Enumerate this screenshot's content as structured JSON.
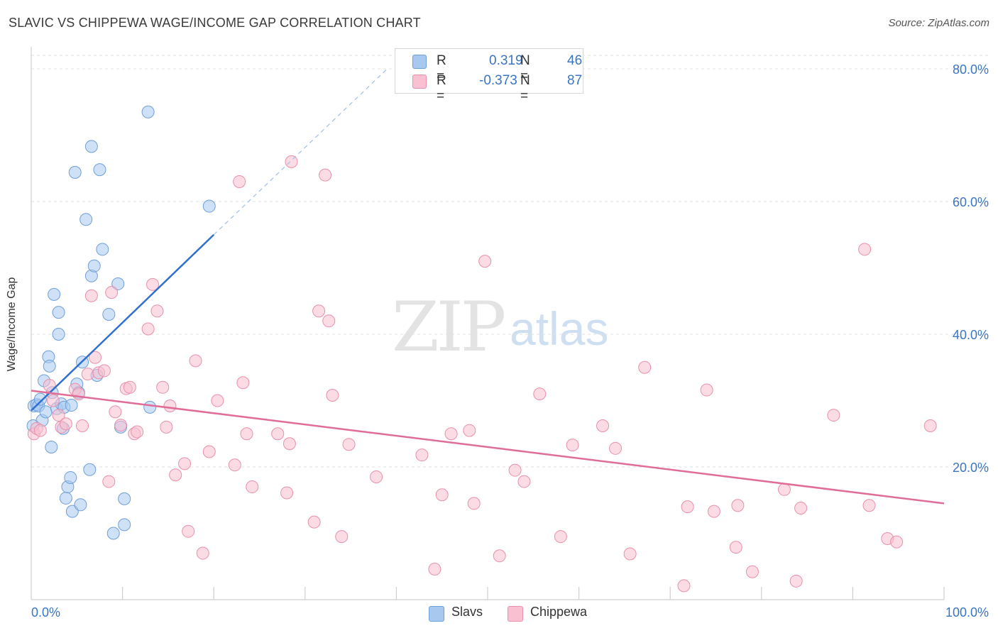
{
  "title": "SLAVIC VS CHIPPEWA WAGE/INCOME GAP CORRELATION CHART",
  "source": "Source: ZipAtlas.com",
  "watermark": {
    "zip": "ZIP",
    "atlas": "atlas"
  },
  "legend": {
    "rows": [
      {
        "r_label": "R =",
        "r_value": "0.319",
        "n_label": "N =",
        "n_value": "46",
        "color": "#a8c8f0",
        "border": "#6f9fd8"
      },
      {
        "r_label": "R =",
        "r_value": "-0.373",
        "n_label": "N =",
        "n_value": "87",
        "color": "#f8c0d0",
        "border": "#e890ab"
      }
    ]
  },
  "bottom_legend": [
    {
      "label": "Slavs",
      "color": "#a8c8f0",
      "border": "#6f9fd8"
    },
    {
      "label": "Chippewa",
      "color": "#f8c0d0",
      "border": "#e890ab"
    }
  ],
  "chart_data": {
    "type": "scatter",
    "title": "SLAVIC VS CHIPPEWA WAGE/INCOME GAP CORRELATION CHART",
    "xlabel": "",
    "ylabel": "Wage/Income Gap",
    "xlim": [
      0,
      100
    ],
    "ylim": [
      0,
      80
    ],
    "x_tick_labels": [
      "0.0%",
      "100.0%"
    ],
    "y_ticks": [
      20,
      40,
      60,
      80
    ],
    "y_tick_labels": [
      "20.0%",
      "40.0%",
      "60.0%",
      "80.0%"
    ],
    "grid": true,
    "series": [
      {
        "name": "Slavs",
        "color": "#6f9fd8",
        "fill": "#a8c8f0",
        "line_color": "#2f6fcf",
        "trend": {
          "x0": 0,
          "y0": 28.5,
          "x1": 20,
          "y1": 55,
          "dash_to_x": 39,
          "dash_to_y": 80
        },
        "points": [
          [
            0.3,
            29.2
          ],
          [
            0.6,
            29.4
          ],
          [
            0.8,
            29.2
          ],
          [
            1.0,
            30.2
          ],
          [
            1.2,
            27.0
          ],
          [
            1.4,
            33.0
          ],
          [
            1.6,
            28.3
          ],
          [
            1.9,
            36.6
          ],
          [
            2.0,
            35.2
          ],
          [
            2.2,
            23.0
          ],
          [
            2.3,
            31.2
          ],
          [
            2.5,
            46.0
          ],
          [
            2.8,
            28.8
          ],
          [
            3.0,
            40.0
          ],
          [
            3.0,
            43.3
          ],
          [
            3.3,
            29.5
          ],
          [
            3.5,
            25.8
          ],
          [
            3.6,
            29.0
          ],
          [
            3.8,
            15.3
          ],
          [
            4.0,
            17.0
          ],
          [
            4.3,
            18.4
          ],
          [
            4.4,
            29.3
          ],
          [
            4.5,
            13.3
          ],
          [
            4.8,
            64.4
          ],
          [
            5.0,
            32.5
          ],
          [
            5.2,
            31.2
          ],
          [
            5.4,
            14.3
          ],
          [
            5.6,
            35.8
          ],
          [
            6.0,
            57.3
          ],
          [
            6.4,
            19.6
          ],
          [
            6.6,
            48.8
          ],
          [
            6.6,
            68.3
          ],
          [
            6.9,
            50.3
          ],
          [
            7.2,
            33.8
          ],
          [
            7.5,
            64.8
          ],
          [
            7.8,
            52.8
          ],
          [
            8.5,
            43.0
          ],
          [
            9.0,
            10.0
          ],
          [
            9.5,
            47.6
          ],
          [
            9.8,
            26.0
          ],
          [
            10.2,
            15.2
          ],
          [
            10.2,
            11.3
          ],
          [
            12.8,
            73.5
          ],
          [
            13.0,
            29.0
          ],
          [
            19.5,
            59.3
          ],
          [
            0.2,
            26.2
          ]
        ]
      },
      {
        "name": "Chippewa",
        "color": "#e890ab",
        "fill": "#f8c0d0",
        "line_color": "#e06d98",
        "trend": {
          "x0": 0,
          "y0": 31.5,
          "x1": 100,
          "y1": 14.5
        },
        "points": [
          [
            0.3,
            25.0
          ],
          [
            0.6,
            25.8
          ],
          [
            1.0,
            25.5
          ],
          [
            2.0,
            32.3
          ],
          [
            2.4,
            30.0
          ],
          [
            3.0,
            27.8
          ],
          [
            3.3,
            26.0
          ],
          [
            3.8,
            26.5
          ],
          [
            4.8,
            31.7
          ],
          [
            5.2,
            31.0
          ],
          [
            5.6,
            26.2
          ],
          [
            6.2,
            34.0
          ],
          [
            6.6,
            45.8
          ],
          [
            7.0,
            36.5
          ],
          [
            7.4,
            34.2
          ],
          [
            8.0,
            34.5
          ],
          [
            8.5,
            17.8
          ],
          [
            8.8,
            46.3
          ],
          [
            9.2,
            28.3
          ],
          [
            9.8,
            26.3
          ],
          [
            10.4,
            31.8
          ],
          [
            10.8,
            32.0
          ],
          [
            11.3,
            25.0
          ],
          [
            11.6,
            25.3
          ],
          [
            12.8,
            40.8
          ],
          [
            13.3,
            47.5
          ],
          [
            13.8,
            43.5
          ],
          [
            14.4,
            32.0
          ],
          [
            14.8,
            26.0
          ],
          [
            15.2,
            29.2
          ],
          [
            15.8,
            18.8
          ],
          [
            16.8,
            20.5
          ],
          [
            17.2,
            10.3
          ],
          [
            18.0,
            36.0
          ],
          [
            18.8,
            7.0
          ],
          [
            19.5,
            22.3
          ],
          [
            20.4,
            30.0
          ],
          [
            22.3,
            20.3
          ],
          [
            22.8,
            63.0
          ],
          [
            23.2,
            32.7
          ],
          [
            23.6,
            25.0
          ],
          [
            24.2,
            17.0
          ],
          [
            27.0,
            25.0
          ],
          [
            28.0,
            16.1
          ],
          [
            28.3,
            23.5
          ],
          [
            28.5,
            66.0
          ],
          [
            31.0,
            11.7
          ],
          [
            31.5,
            43.5
          ],
          [
            32.2,
            64.0
          ],
          [
            32.6,
            42.0
          ],
          [
            33.0,
            30.8
          ],
          [
            34.0,
            9.5
          ],
          [
            34.8,
            23.4
          ],
          [
            37.8,
            18.5
          ],
          [
            42.8,
            21.8
          ],
          [
            44.2,
            4.6
          ],
          [
            45.0,
            15.8
          ],
          [
            46.0,
            25.0
          ],
          [
            48.0,
            25.5
          ],
          [
            48.5,
            14.5
          ],
          [
            49.7,
            51.0
          ],
          [
            51.3,
            6.6
          ],
          [
            53.0,
            19.5
          ],
          [
            54.0,
            17.8
          ],
          [
            55.7,
            31.0
          ],
          [
            58.0,
            9.5
          ],
          [
            59.3,
            23.3
          ],
          [
            62.6,
            26.2
          ],
          [
            64.0,
            22.8
          ],
          [
            65.6,
            6.9
          ],
          [
            67.2,
            35.0
          ],
          [
            71.5,
            2.1
          ],
          [
            71.9,
            14.0
          ],
          [
            74.0,
            31.6
          ],
          [
            74.8,
            13.3
          ],
          [
            77.2,
            7.9
          ],
          [
            77.4,
            14.2
          ],
          [
            79.0,
            4.2
          ],
          [
            82.5,
            16.6
          ],
          [
            83.8,
            2.8
          ],
          [
            84.3,
            13.8
          ],
          [
            87.9,
            27.8
          ],
          [
            91.3,
            52.8
          ],
          [
            91.8,
            14.2
          ],
          [
            93.8,
            9.2
          ],
          [
            94.8,
            8.7
          ],
          [
            98.5,
            26.2
          ]
        ]
      }
    ]
  }
}
